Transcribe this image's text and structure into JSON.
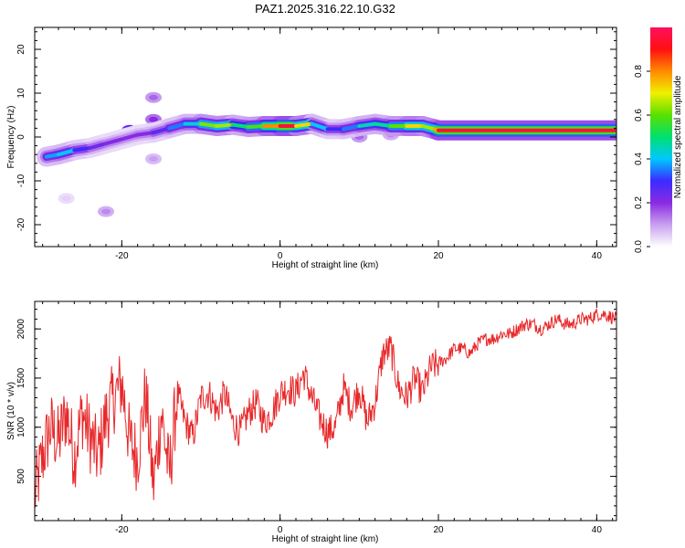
{
  "title": "PAZ1.2025.316.22.10.G32",
  "chart_data": [
    {
      "type": "heatmap",
      "xlabel": "Height of straight line (km)",
      "ylabel": "Frequency (Hz)",
      "xlim": [
        -31,
        42.5
      ],
      "ylim": [
        -25,
        25
      ],
      "xticks": [
        -20,
        0,
        20,
        40
      ],
      "yticks": [
        -20,
        -10,
        0,
        10,
        20
      ],
      "colorbar": {
        "label": "Normalized spectral amplitude",
        "range": [
          0,
          1
        ],
        "ticks": [
          "0.0",
          "0.2",
          "0.4",
          "0.6",
          "0.8"
        ],
        "colors": [
          "#ffffff",
          "#c8a0f0",
          "#8a2be2",
          "#3a2bff",
          "#00c8ff",
          "#00e070",
          "#5ae000",
          "#f0f000",
          "#ff8a00",
          "#ff1010",
          "#ff1060"
        ]
      },
      "ridge": {
        "x": [
          -29.5,
          -28,
          -26,
          -24,
          -22,
          -20,
          -18,
          -16,
          -14,
          -12,
          -10,
          -8,
          -6,
          -4,
          -2,
          0,
          2,
          4,
          6,
          8,
          10,
          12,
          14,
          16,
          18,
          19.5,
          20,
          42.5
        ],
        "freq": [
          -4.5,
          -4.0,
          -3.0,
          -2.5,
          -1.5,
          -0.5,
          0.5,
          1.0,
          2.0,
          3.0,
          3.0,
          2.5,
          2.8,
          2.3,
          2.5,
          2.5,
          2.5,
          3.0,
          1.8,
          1.8,
          2.5,
          3.0,
          2.5,
          2.5,
          2.5,
          1.8,
          1.5,
          1.5
        ],
        "amplitude": [
          0.3,
          0.45,
          0.35,
          0.25,
          0.22,
          0.2,
          0.2,
          0.22,
          0.3,
          0.4,
          0.45,
          0.8,
          0.5,
          0.5,
          0.65,
          0.95,
          0.95,
          0.5,
          0.3,
          0.3,
          0.4,
          0.5,
          0.45,
          0.75,
          0.7,
          0.6,
          0.95,
          0.95
        ]
      },
      "blobs": [
        {
          "x": -16,
          "freq": 9,
          "amplitude": 0.15
        },
        {
          "x": -16,
          "freq": 4,
          "amplitude": 0.2
        },
        {
          "x": -13,
          "freq": 3,
          "amplitude": 0.25
        },
        {
          "x": -19,
          "freq": 1.5,
          "amplitude": 0.35
        },
        {
          "x": -15,
          "freq": 0.5,
          "amplitude": 0.3
        },
        {
          "x": -22,
          "freq": -17,
          "amplitude": 0.12
        },
        {
          "x": -27,
          "freq": -14,
          "amplitude": 0.05
        },
        {
          "x": -16,
          "freq": -5,
          "amplitude": 0.1
        },
        {
          "x": 10,
          "freq": 0,
          "amplitude": 0.15
        },
        {
          "x": 14,
          "freq": 0.5,
          "amplitude": 0.12
        }
      ]
    },
    {
      "type": "line",
      "xlabel": "Height of straight line (km)",
      "ylabel": "SNR (10 * v/v)",
      "xlim": [
        -31,
        42.5
      ],
      "ylim": [
        50,
        2280
      ],
      "xticks": [
        -20,
        0,
        20,
        40
      ],
      "yticks": [
        500,
        1000,
        1500,
        2000
      ],
      "color": "#e8282a",
      "series": [
        {
          "x": [
            -31,
            -30,
            -29,
            -28,
            -27,
            -26,
            -25,
            -24,
            -23,
            -22,
            -21,
            -20,
            -19,
            -18,
            -17,
            -16,
            -15,
            -14,
            -13,
            -12,
            -11,
            -10,
            -9,
            -8,
            -7,
            -6,
            -5,
            -4,
            -3,
            -2,
            -1,
            0,
            1,
            2,
            3,
            4,
            5,
            6,
            7,
            8,
            9,
            10,
            11,
            12,
            13,
            14,
            15,
            16,
            17,
            18,
            19,
            20,
            21,
            22,
            23,
            24,
            25,
            26,
            27,
            28,
            29,
            30,
            31,
            32,
            33,
            34,
            35,
            36,
            37,
            38,
            39,
            40,
            41,
            42.5
          ],
          "values": [
            300,
            700,
            1000,
            850,
            1150,
            700,
            1150,
            900,
            700,
            1100,
            1300,
            1450,
            850,
            700,
            1350,
            400,
            1150,
            500,
            1350,
            1050,
            900,
            1300,
            1350,
            1150,
            1350,
            1050,
            950,
            1150,
            1250,
            1050,
            1150,
            1350,
            1400,
            1350,
            1550,
            1300,
            1100,
            950,
            1000,
            1400,
            1200,
            1400,
            1050,
            1250,
            1750,
            1800,
            1400,
            1300,
            1500,
            1350,
            1600,
            1650,
            1700,
            1800,
            1800,
            1750,
            1850,
            1900,
            1900,
            1950,
            1950,
            2000,
            2050,
            2050,
            2000,
            2050,
            2100,
            2050,
            2050,
            2100,
            2100,
            2150,
            2150,
            2100
          ]
        }
      ]
    }
  ]
}
